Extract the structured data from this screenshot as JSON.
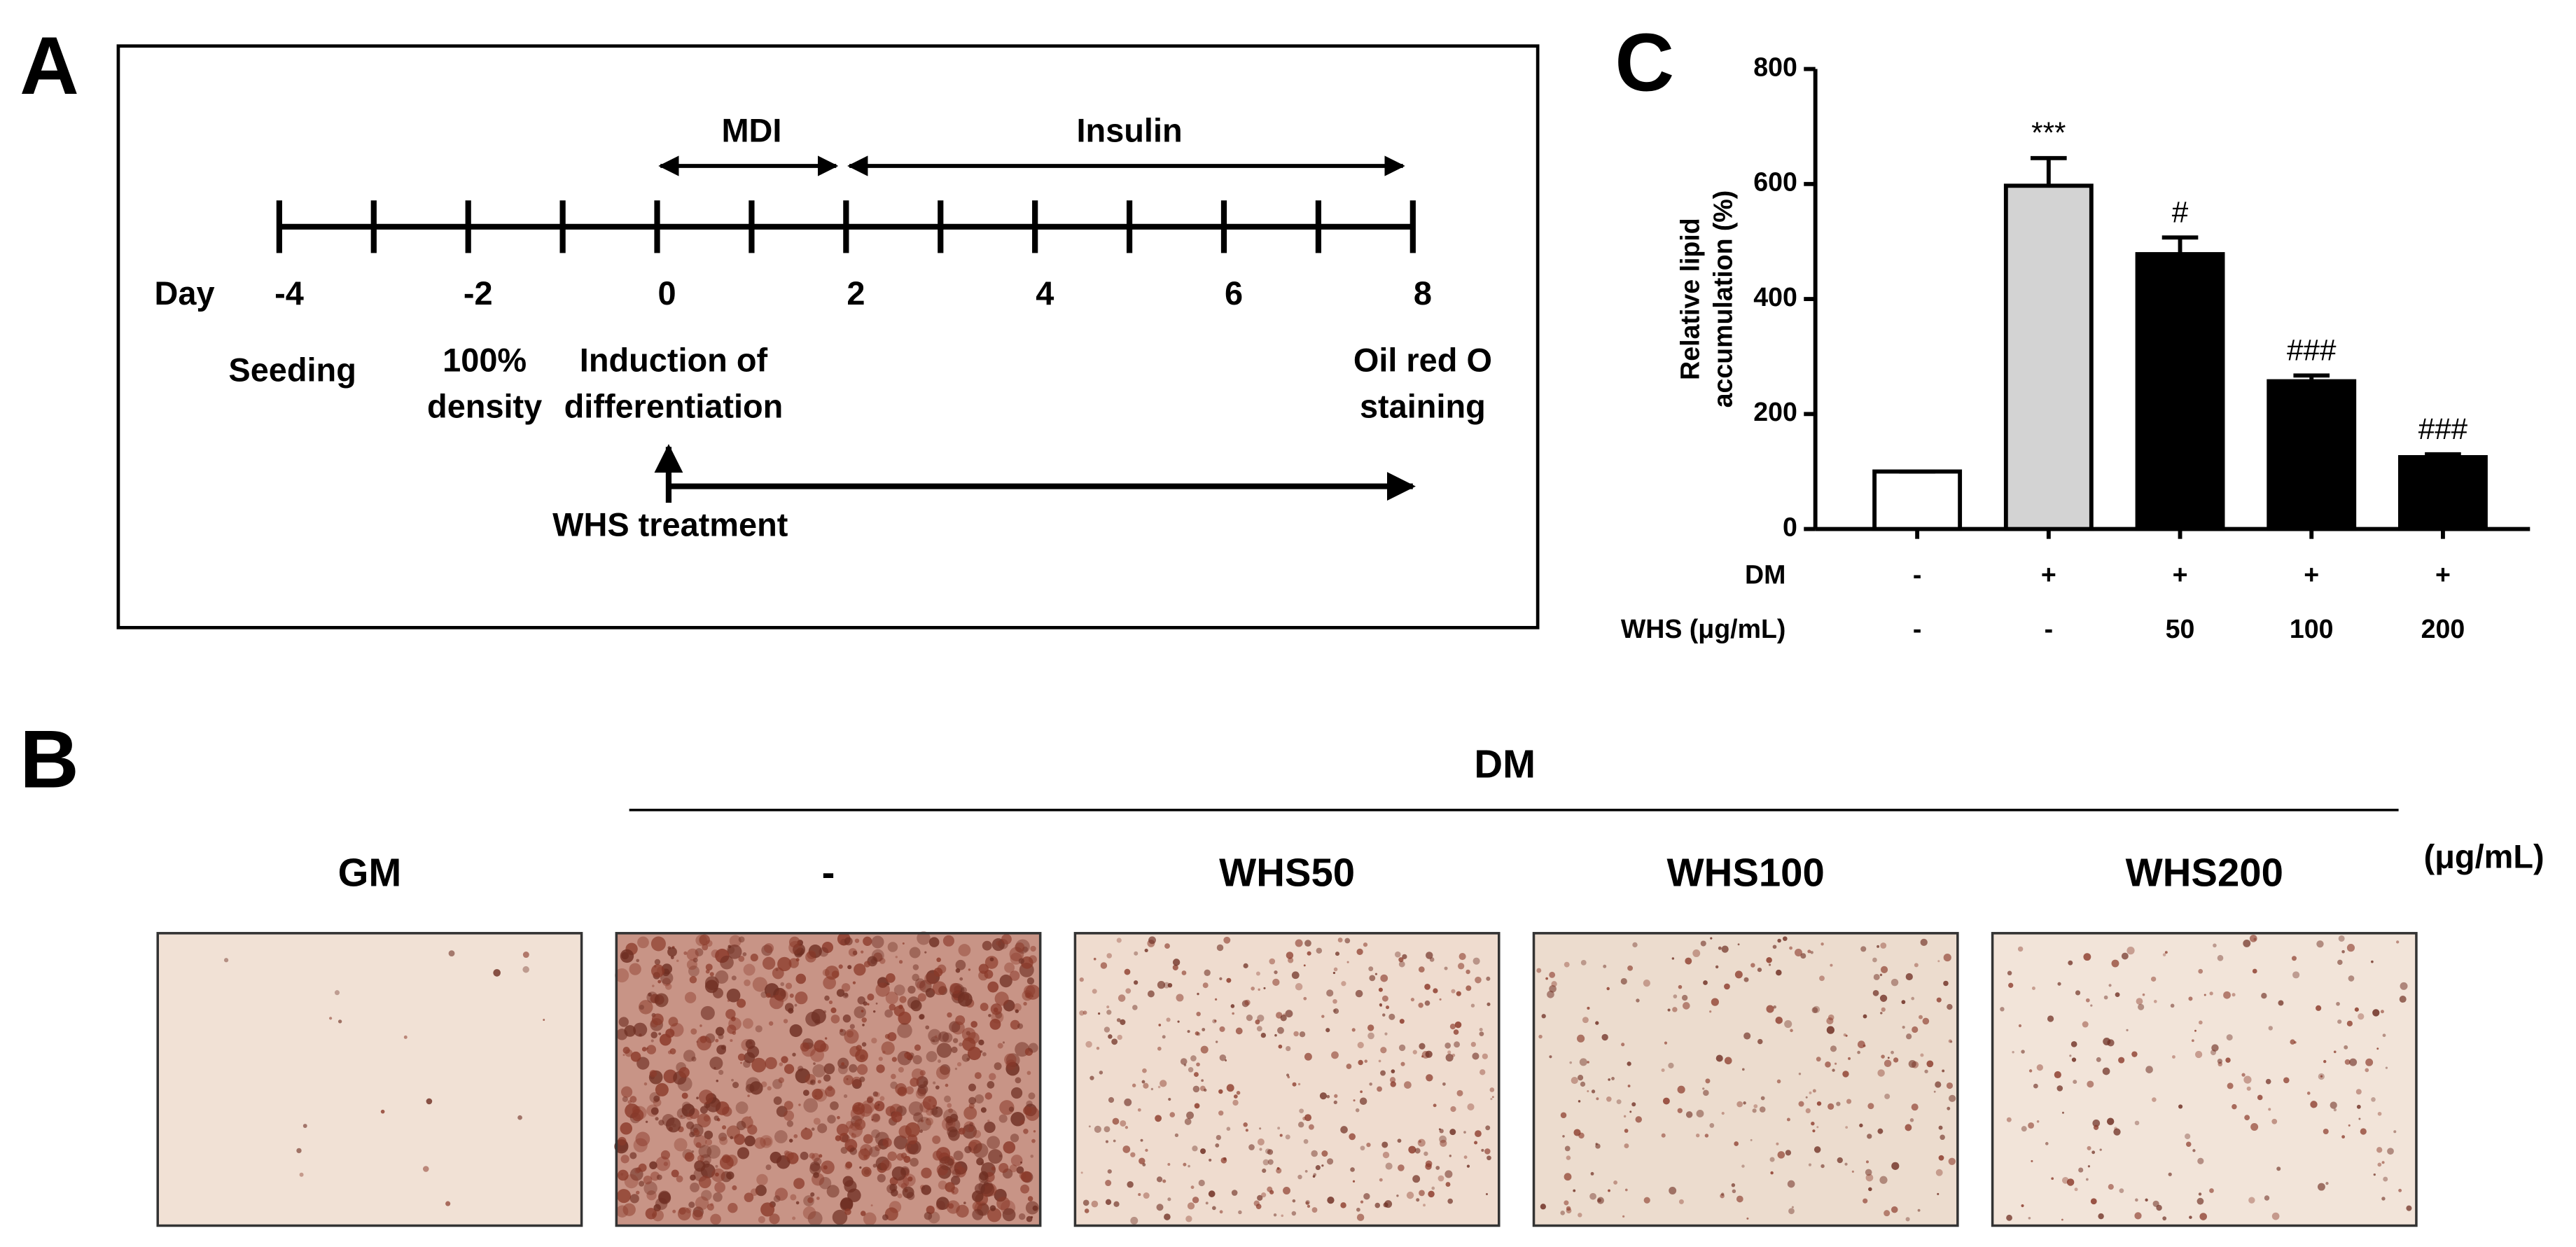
{
  "panels": {
    "a": "A",
    "b": "B",
    "c": "C"
  },
  "timeline": {
    "day_label": "Day",
    "days": [
      -4,
      -2,
      0,
      2,
      4,
      6,
      8
    ],
    "events": [
      {
        "day": -4,
        "lines": [
          "Seeding"
        ]
      },
      {
        "day": -2,
        "lines": [
          "100%",
          "density"
        ]
      },
      {
        "day": 0,
        "lines": [
          "Induction of",
          "differentiation"
        ]
      },
      {
        "day": 8,
        "lines": [
          "Oil red O",
          "staining"
        ]
      }
    ],
    "phases": [
      {
        "label": "MDI",
        "start": 0,
        "end": 2
      },
      {
        "label": "Insulin",
        "start": 2,
        "end": 8
      }
    ],
    "treatment": {
      "label": "WHS treatment",
      "start": 0,
      "end": 8
    }
  },
  "chart_data": {
    "type": "bar",
    "ylabel": [
      "Relative lipid",
      "accumulation (%)"
    ],
    "values": [
      100,
      597,
      478,
      257,
      125
    ],
    "errors": [
      0,
      48,
      29,
      10,
      5
    ],
    "colors": [
      "#ffffff",
      "#d3d3d3",
      "#000000",
      "#000000",
      "#000000"
    ],
    "annotations": [
      null,
      "***",
      "#",
      "###",
      "###"
    ],
    "condition_rows": [
      {
        "label": "DM",
        "values": [
          "-",
          "+",
          "+",
          "+",
          "+"
        ]
      },
      {
        "label": "WHS (μg/mL)",
        "values": [
          "-",
          "-",
          "50",
          "100",
          "200"
        ]
      }
    ],
    "ylim": [
      0,
      800
    ],
    "yticks": [
      0,
      200,
      400,
      600,
      800
    ]
  },
  "images": {
    "group_label": "DM",
    "unit": "(μg/mL)",
    "columns": [
      "GM",
      "-",
      "WHS50",
      "WHS100",
      "WHS200"
    ]
  }
}
